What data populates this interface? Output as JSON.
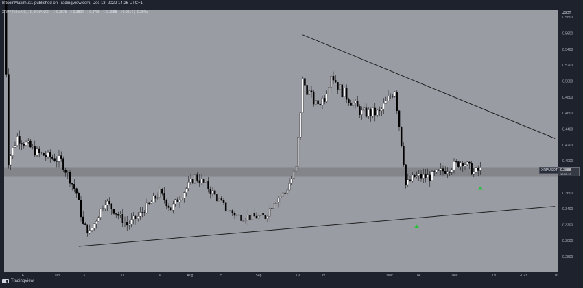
{
  "header": {
    "title": "BitcoinMaximus1 published on TradingView.com, Dec 13, 2022 14:26 UTC+1",
    "symbol": "XRP / TetherUS, 1D, BINANCE",
    "open_label": "O",
    "open": "0.3875",
    "high_label": "H",
    "high": "0.3892",
    "low_label": "L",
    "low": "0.3786",
    "close_label": "C",
    "close": "0.3888",
    "change": "+0.0014 (+0.36%)"
  },
  "currency": "USDT",
  "price_tag": {
    "symbol": "XRPUSDT",
    "price": "0.3888",
    "countdown": "10:33:10"
  },
  "footer": {
    "brand": "TradingView"
  },
  "colors": {
    "plot_bg": "#9a9ca3",
    "panel_bg": "#1e222d",
    "candle_up": "#ffffff",
    "candle_down": "#000000",
    "zone": "#7f8187",
    "trendline": "#1f1f1f",
    "arrow": "#26c23b"
  },
  "chart_data": {
    "type": "candlestick",
    "title": "",
    "xlabel": "",
    "ylabel": "",
    "ylim": [
      0.26,
      0.59
    ],
    "y_ticks": [
      "0.5800",
      "0.5600",
      "0.5400",
      "0.5200",
      "0.5000",
      "0.4800",
      "0.4600",
      "0.4400",
      "0.4200",
      "0.4000",
      "0.3600",
      "0.3400",
      "0.3200",
      "0.3000",
      "0.2800"
    ],
    "x_ticks": [
      "16",
      "Jun",
      "13",
      "Jul",
      "18",
      "Aug",
      "15",
      "Sep",
      "19",
      "Oct",
      "17",
      "Nov",
      "14",
      "Dec",
      "19",
      "2023",
      "16"
    ],
    "grid": false,
    "legend": "none",
    "support_zone": {
      "low": 0.38,
      "high": 0.392
    },
    "descending_trendline": {
      "from": {
        "date": "2022-09-23",
        "price": 0.558
      },
      "to": {
        "date": "2023-01-16",
        "price": 0.428
      }
    },
    "ascending_trendline": {
      "from": {
        "date": "2022-06-13",
        "price": 0.293
      },
      "to": {
        "date": "2023-01-16",
        "price": 0.343
      }
    },
    "markers": [
      {
        "type": "arrow-up",
        "date": "2022-11-14",
        "price": 0.318
      },
      {
        "type": "arrow-up",
        "date": "2022-12-13",
        "price": 0.366
      }
    ],
    "x_start_date": "2022-05-10",
    "anchors": [
      [
        "2022-05-10",
        0.625
      ],
      [
        "2022-05-12",
        0.4
      ],
      [
        "2022-05-16",
        0.43
      ],
      [
        "2022-05-25",
        0.41
      ],
      [
        "2022-06-05",
        0.4
      ],
      [
        "2022-06-12",
        0.36
      ],
      [
        "2022-06-15",
        0.32
      ],
      [
        "2022-06-18",
        0.31
      ],
      [
        "2022-06-25",
        0.35
      ],
      [
        "2022-07-05",
        0.32
      ],
      [
        "2022-07-10",
        0.33
      ],
      [
        "2022-07-20",
        0.36
      ],
      [
        "2022-07-25",
        0.34
      ],
      [
        "2022-08-05",
        0.38
      ],
      [
        "2022-08-10",
        0.37
      ],
      [
        "2022-08-19",
        0.34
      ],
      [
        "2022-08-25",
        0.33
      ],
      [
        "2022-09-06",
        0.33
      ],
      [
        "2022-09-10",
        0.35
      ],
      [
        "2022-09-15",
        0.36
      ],
      [
        "2022-09-20",
        0.39
      ],
      [
        "2022-09-23",
        0.5
      ],
      [
        "2022-09-29",
        0.47
      ],
      [
        "2022-10-03",
        0.48
      ],
      [
        "2022-10-06",
        0.51
      ],
      [
        "2022-10-10",
        0.49
      ],
      [
        "2022-10-20",
        0.46
      ],
      [
        "2022-10-28",
        0.46
      ],
      [
        "2022-11-04",
        0.49
      ],
      [
        "2022-11-08",
        0.4
      ],
      [
        "2022-11-09",
        0.37
      ],
      [
        "2022-11-13",
        0.38
      ],
      [
        "2022-11-20",
        0.38
      ],
      [
        "2022-11-28",
        0.39
      ],
      [
        "2022-12-05",
        0.4
      ],
      [
        "2022-12-10",
        0.385
      ],
      [
        "2022-12-13",
        0.389
      ]
    ]
  }
}
